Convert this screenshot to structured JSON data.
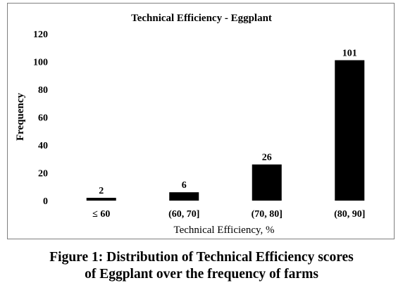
{
  "chart_data": {
    "type": "bar",
    "title": "Technical Efficiency - Eggplant",
    "xlabel": "Technical Efficiency, %",
    "ylabel": "Frequency",
    "categories": [
      "≤ 60",
      "(60, 70]",
      "(70, 80]",
      "(80, 90]"
    ],
    "values": [
      2,
      6,
      26,
      101
    ],
    "data_labels": [
      "2",
      "6",
      "26",
      "101"
    ],
    "yticks": [
      0,
      20,
      40,
      60,
      80,
      100,
      120
    ],
    "ylim": [
      0,
      120
    ],
    "grid": false,
    "legend": "none",
    "bar_color": "#000000"
  },
  "caption": {
    "line1": "Figure 1: Distribution of Technical Efficiency scores",
    "line2": "of Eggplant over the frequency of farms"
  }
}
